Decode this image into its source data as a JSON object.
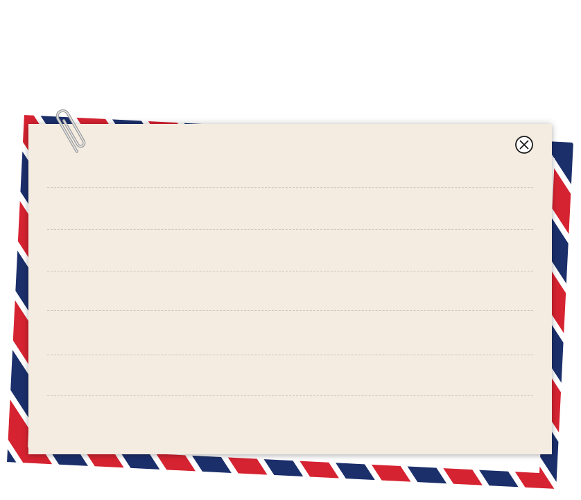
{
  "envelope": {
    "stripe_colors": [
      "#d62331",
      "#1b2f6b"
    ]
  },
  "note": {
    "background_color": "#f4ebe1",
    "ruled_line_count": 6
  },
  "icons": {
    "close": "close-circle-icon",
    "clip": "paperclip-icon"
  }
}
